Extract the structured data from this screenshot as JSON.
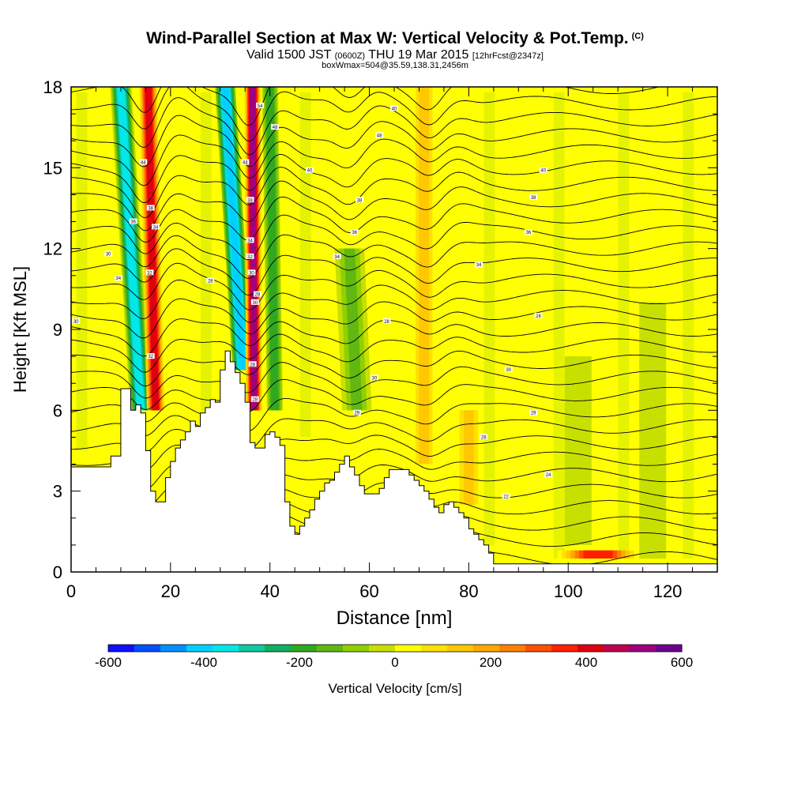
{
  "title": {
    "main": "Wind-Parallel Section at Max W: Vertical Velocity & Pot.Temp.",
    "copyright": "(C)",
    "valid_prefix": "Valid 1500 JST",
    "zulu": "(0600Z)",
    "valid_date": "THU 19 Mar 2015",
    "forecast": "[12hrFcst@2347z]",
    "box_info": "boxWmax=504@35.59,138.31,2456m"
  },
  "colors": {
    "background": "#ffff00",
    "colorbar": [
      "#1010ff",
      "#0050ff",
      "#0090ff",
      "#00d0ff",
      "#00e8e8",
      "#10c8a0",
      "#10b060",
      "#30a820",
      "#60b810",
      "#90d000",
      "#c8e000",
      "#ffff00",
      "#ffe000",
      "#ffc800",
      "#ffa800",
      "#ff8000",
      "#ff5000",
      "#ff2000",
      "#e00010",
      "#c00050",
      "#a00080",
      "#700090"
    ]
  },
  "chart_data": {
    "type": "heatmap",
    "xlabel": "Distance [nm]",
    "ylabel": "Height [Kft MSL]",
    "xlim": [
      0,
      130
    ],
    "ylim": [
      0,
      18
    ],
    "x_ticks": [
      0,
      20,
      40,
      60,
      80,
      100,
      120
    ],
    "y_ticks": [
      0,
      3,
      6,
      9,
      12,
      15,
      18
    ],
    "terrain": {
      "x": [
        0,
        2,
        4,
        6,
        8,
        10,
        11,
        12,
        13,
        14,
        15,
        16,
        17,
        18,
        19,
        20,
        21,
        22,
        23,
        24,
        25,
        26,
        27,
        28,
        29,
        30,
        31,
        32,
        33,
        34,
        35,
        36,
        37,
        38,
        39,
        40,
        41,
        42,
        43,
        44,
        45,
        46,
        47,
        48,
        49,
        50,
        51,
        52,
        53,
        54,
        55,
        56,
        57,
        58,
        59,
        60,
        61,
        62,
        63,
        64,
        65,
        66,
        67,
        68,
        69,
        70,
        71,
        72,
        73,
        74,
        75,
        76,
        77,
        78,
        79,
        80,
        81,
        82,
        83,
        84,
        85,
        86,
        87,
        88,
        90,
        95,
        100,
        105,
        110,
        115,
        120,
        125,
        130
      ],
      "h": [
        3.9,
        3.9,
        3.9,
        3.9,
        4.3,
        6.8,
        6.8,
        6.0,
        6.2,
        5.9,
        4.5,
        3.0,
        2.6,
        2.6,
        3.5,
        4.1,
        4.6,
        4.9,
        5.2,
        5.6,
        5.4,
        5.9,
        6.1,
        6.4,
        6.3,
        7.5,
        8.2,
        7.8,
        7.4,
        7.0,
        6.3,
        4.8,
        4.6,
        4.6,
        5.1,
        5.2,
        5.0,
        4.7,
        2.6,
        1.7,
        1.4,
        1.7,
        2.0,
        2.3,
        2.7,
        3.0,
        3.3,
        3.4,
        3.7,
        4.0,
        4.3,
        3.9,
        3.6,
        3.2,
        2.9,
        2.9,
        2.9,
        3.1,
        3.5,
        3.8,
        3.8,
        3.8,
        3.8,
        3.6,
        3.4,
        3.2,
        3.0,
        2.7,
        2.4,
        2.2,
        2.5,
        2.6,
        2.4,
        2.2,
        2.0,
        1.6,
        1.4,
        1.2,
        1.0,
        0.7,
        0.3,
        0.3,
        0.3,
        0.3,
        0.3,
        0.3,
        0.3,
        0.3,
        0.3,
        0.3,
        0.3,
        0.3,
        0.3
      ]
    },
    "velocity_features": [
      {
        "x_bottom": 14.0,
        "y_bottom": 6.0,
        "x_top": 10.0,
        "y_top": 18,
        "half_width_nm": 1.6,
        "w_cm_s": -380
      },
      {
        "x_bottom": 17.0,
        "y_bottom": 6.0,
        "x_top": 15.5,
        "y_top": 18,
        "half_width_nm": 1.3,
        "w_cm_s": 430
      },
      {
        "x_bottom": 34.5,
        "y_bottom": 7.5,
        "x_top": 31.0,
        "y_top": 18,
        "half_width_nm": 1.5,
        "w_cm_s": -400
      },
      {
        "x_bottom": 36.8,
        "y_bottom": 6.0,
        "x_top": 36.5,
        "y_top": 18,
        "half_width_nm": 1.2,
        "w_cm_s": 504
      },
      {
        "x_bottom": 41.0,
        "y_bottom": 6.0,
        "x_top": 40.0,
        "y_top": 18,
        "half_width_nm": 1.2,
        "w_cm_s": -200
      },
      {
        "x_bottom": 57.5,
        "y_bottom": 6.0,
        "x_top": 56.0,
        "y_top": 12.0,
        "half_width_nm": 2.2,
        "w_cm_s": -110
      },
      {
        "x_bottom": 71.0,
        "y_bottom": 4.0,
        "x_top": 71.0,
        "y_top": 18,
        "half_width_nm": 1.6,
        "w_cm_s": 130
      },
      {
        "x_bottom": 80.0,
        "y_bottom": 2.5,
        "x_top": 80.0,
        "y_top": 6.0,
        "half_width_nm": 2.0,
        "w_cm_s": 110
      },
      {
        "x_bottom": 106.0,
        "y_bottom": 0.5,
        "x_top": 106.0,
        "y_top": 0.8,
        "half_width_nm": 6.0,
        "w_cm_s": 330
      },
      {
        "x_bottom": 117.0,
        "y_bottom": 0.5,
        "x_top": 117.0,
        "y_top": 10.0,
        "half_width_nm": 2.0,
        "w_cm_s": -40
      },
      {
        "x_bottom": 102.0,
        "y_bottom": 1.0,
        "x_top": 102.0,
        "y_top": 8.0,
        "half_width_nm": 2.0,
        "w_cm_s": -40
      }
    ],
    "theta_contours": {
      "base_heights_kft": [
        0.5,
        1.2,
        1.8,
        2.4,
        3.0,
        3.6,
        4.2,
        4.8,
        5.4,
        6.0,
        6.6,
        7.2,
        7.8,
        8.4,
        9.0,
        9.6,
        10.2,
        10.8,
        11.4,
        12.0,
        12.6,
        13.2,
        13.8,
        14.4,
        15.0,
        15.6,
        16.2,
        16.8,
        17.4,
        18.0
      ],
      "wave_centers_nm": [
        15,
        36,
        56,
        72
      ],
      "wave_amplitude_kft": 0.9
    },
    "contour_labels": [
      {
        "x": 38,
        "y": 17.3,
        "text": "54"
      },
      {
        "x": 65,
        "y": 17.2,
        "text": "40"
      },
      {
        "x": 41,
        "y": 16.5,
        "text": "48"
      },
      {
        "x": 62,
        "y": 16.2,
        "text": "48"
      },
      {
        "x": 14.5,
        "y": 15.2,
        "text": "44"
      },
      {
        "x": 35,
        "y": 15.2,
        "text": "44"
      },
      {
        "x": 48,
        "y": 14.9,
        "text": "40"
      },
      {
        "x": 95,
        "y": 14.9,
        "text": "40"
      },
      {
        "x": 36,
        "y": 13.8,
        "text": "38"
      },
      {
        "x": 58,
        "y": 13.8,
        "text": "38"
      },
      {
        "x": 93,
        "y": 13.9,
        "text": "38"
      },
      {
        "x": 16,
        "y": 13.5,
        "text": "38"
      },
      {
        "x": 12.5,
        "y": 13.0,
        "text": "36"
      },
      {
        "x": 17,
        "y": 12.8,
        "text": "34"
      },
      {
        "x": 57,
        "y": 12.6,
        "text": "36"
      },
      {
        "x": 92,
        "y": 12.6,
        "text": "36"
      },
      {
        "x": 36,
        "y": 12.3,
        "text": "34"
      },
      {
        "x": 7.5,
        "y": 11.8,
        "text": "30"
      },
      {
        "x": 36,
        "y": 11.7,
        "text": "32"
      },
      {
        "x": 53.5,
        "y": 11.7,
        "text": "34"
      },
      {
        "x": 82,
        "y": 11.4,
        "text": "34"
      },
      {
        "x": 15.8,
        "y": 11.1,
        "text": "32"
      },
      {
        "x": 36.3,
        "y": 11.1,
        "text": "30"
      },
      {
        "x": 28,
        "y": 10.8,
        "text": "28"
      },
      {
        "x": 9.5,
        "y": 10.9,
        "text": "34"
      },
      {
        "x": 37.5,
        "y": 10.3,
        "text": "28"
      },
      {
        "x": 37,
        "y": 10.0,
        "text": "30"
      },
      {
        "x": 94,
        "y": 9.5,
        "text": "28"
      },
      {
        "x": 1,
        "y": 9.3,
        "text": "30"
      },
      {
        "x": 63.5,
        "y": 9.3,
        "text": "28"
      },
      {
        "x": 16,
        "y": 8.0,
        "text": "32"
      },
      {
        "x": 36.5,
        "y": 7.7,
        "text": "28"
      },
      {
        "x": 88,
        "y": 7.5,
        "text": "30"
      },
      {
        "x": 61,
        "y": 7.2,
        "text": "30"
      },
      {
        "x": 37,
        "y": 6.4,
        "text": "28"
      },
      {
        "x": 57.5,
        "y": 5.9,
        "text": "29"
      },
      {
        "x": 93,
        "y": 5.9,
        "text": "29"
      },
      {
        "x": 83,
        "y": 5.0,
        "text": "28"
      },
      {
        "x": 96,
        "y": 3.6,
        "text": "24"
      },
      {
        "x": 87.5,
        "y": 2.8,
        "text": "22"
      }
    ],
    "colorbar": {
      "label": "Vertical Velocity [cm/s]",
      "range": [
        -600,
        600
      ],
      "tick_labels": [
        "-600",
        "-400",
        "-200",
        "0",
        "200",
        "400",
        "600"
      ]
    }
  }
}
